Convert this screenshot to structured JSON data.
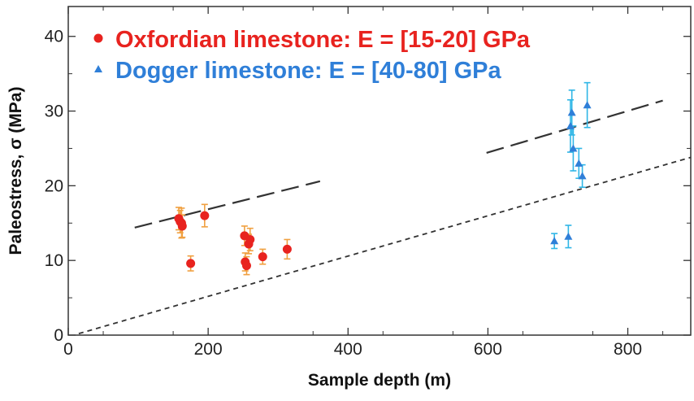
{
  "chart_data": {
    "type": "scatter",
    "xlabel": "Sample depth (m)",
    "ylabel": "Paleostress, σ (MPa)",
    "xlim": [
      0,
      890
    ],
    "ylim": [
      0,
      44
    ],
    "x_ticks": [
      0,
      200,
      400,
      600,
      800
    ],
    "x_tick_labels": [
      "0",
      "200",
      "400",
      "600",
      "800"
    ],
    "y_ticks": [
      0,
      10,
      20,
      30,
      40
    ],
    "y_tick_labels": [
      "0",
      "10",
      "20",
      "30",
      "40"
    ],
    "legend_position": "top-left",
    "series": [
      {
        "name": "Oxfordian limestone: E = [15-20] GPa",
        "marker": "circle",
        "color": "#e8231f",
        "error_color": "#f0a040",
        "points": [
          {
            "x": 158,
            "y": 15.6,
            "err": 1.5
          },
          {
            "x": 160,
            "y": 15.2,
            "err": 1.5
          },
          {
            "x": 162,
            "y": 15.0,
            "err": 2.0
          },
          {
            "x": 163,
            "y": 14.6,
            "err": 1.5
          },
          {
            "x": 175,
            "y": 9.6,
            "err": 1.0
          },
          {
            "x": 195,
            "y": 16.0,
            "err": 1.5
          },
          {
            "x": 252,
            "y": 13.3,
            "err": 1.3
          },
          {
            "x": 253,
            "y": 9.8,
            "err": 1.2
          },
          {
            "x": 255,
            "y": 9.3,
            "err": 1.2
          },
          {
            "x": 258,
            "y": 12.2,
            "err": 1.3
          },
          {
            "x": 260,
            "y": 12.8,
            "err": 1.5
          },
          {
            "x": 278,
            "y": 10.5,
            "err": 1.0
          },
          {
            "x": 313,
            "y": 11.5,
            "err": 1.3
          }
        ]
      },
      {
        "name": "Dogger limestone: E = [40-80] GPa",
        "marker": "triangle",
        "color": "#2f7fd8",
        "error_color": "#2fb6e6",
        "points": [
          {
            "x": 695,
            "y": 12.6,
            "err": 1.0
          },
          {
            "x": 715,
            "y": 13.2,
            "err": 1.5
          },
          {
            "x": 718,
            "y": 28.0,
            "err": 3.5
          },
          {
            "x": 720,
            "y": 29.8,
            "err": 3.0
          },
          {
            "x": 722,
            "y": 25.0,
            "err": 3.0
          },
          {
            "x": 730,
            "y": 23.0,
            "err": 2.0
          },
          {
            "x": 735,
            "y": 21.3,
            "err": 1.5
          },
          {
            "x": 742,
            "y": 30.8,
            "err": 3.0
          }
        ]
      }
    ],
    "reference_lines": [
      {
        "style": "long-dash",
        "color": "#333333",
        "segments": [
          {
            "x": [
              95,
              360
            ],
            "y": [
              14.4,
              20.6
            ]
          },
          {
            "x": [
              598,
              850
            ],
            "y": [
              24.4,
              31.4
            ]
          }
        ]
      },
      {
        "style": "short-dash",
        "color": "#333333",
        "segments": [
          {
            "x": [
              15,
              890
            ],
            "y": [
              0.2,
              23.8
            ]
          }
        ]
      }
    ]
  }
}
